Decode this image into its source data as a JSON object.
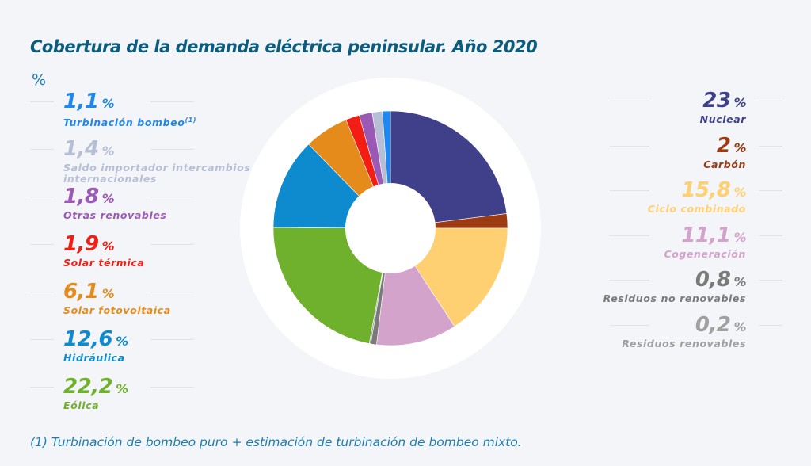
{
  "title": "Cobertura de la demanda eléctrica peninsular. Año 2020",
  "unit_label": "%",
  "footnote": "(1)  Turbinación de bombeo puro + estimación de turbinación de bombeo mixto.",
  "chart_data": {
    "type": "pie",
    "style": "donut",
    "title": "Cobertura de la demanda eléctrica peninsular. Año 2020",
    "unit": "%",
    "slices": [
      {
        "name": "Nuclear",
        "value": 23,
        "value_label": "23",
        "color": "#40408a",
        "side": "right"
      },
      {
        "name": "Carbón",
        "value": 2,
        "value_label": "2",
        "color": "#9c3b12",
        "side": "right"
      },
      {
        "name": "Ciclo combinado",
        "value": 15.8,
        "value_label": "15,8",
        "color": "#ffd071",
        "side": "right"
      },
      {
        "name": "Cogeneración",
        "value": 11.1,
        "value_label": "11,1",
        "color": "#d3a3cc",
        "side": "right"
      },
      {
        "name": "Residuos no renovables",
        "value": 0.8,
        "value_label": "0,8",
        "color": "#7a7a7a",
        "side": "right"
      },
      {
        "name": "Residuos renovables",
        "value": 0.2,
        "value_label": "0,2",
        "color": "#a0a0a0",
        "side": "right"
      },
      {
        "name": "Eólica",
        "value": 22.2,
        "value_label": "22,2",
        "color": "#6fb12c",
        "side": "left"
      },
      {
        "name": "Hidráulica",
        "value": 12.6,
        "value_label": "12,6",
        "color": "#0e8bcf",
        "side": "left"
      },
      {
        "name": "Solar fotovoltaica",
        "value": 6.1,
        "value_label": "6,1",
        "color": "#e58b1b",
        "side": "left"
      },
      {
        "name": "Solar térmica",
        "value": 1.9,
        "value_label": "1,9",
        "color": "#f21e13",
        "side": "left"
      },
      {
        "name": "Otras renovables",
        "value": 1.8,
        "value_label": "1,8",
        "color": "#9b59b6",
        "side": "left"
      },
      {
        "name": "Saldo importador intercambios internacionales",
        "value": 1.4,
        "value_label": "1,4",
        "color": "#b6bfd6",
        "side": "left"
      },
      {
        "name": "Turbinación bombeo",
        "name_note": "(1)",
        "value": 1.1,
        "value_label": "1,1",
        "color": "#1e88f0",
        "side": "left"
      }
    ]
  }
}
